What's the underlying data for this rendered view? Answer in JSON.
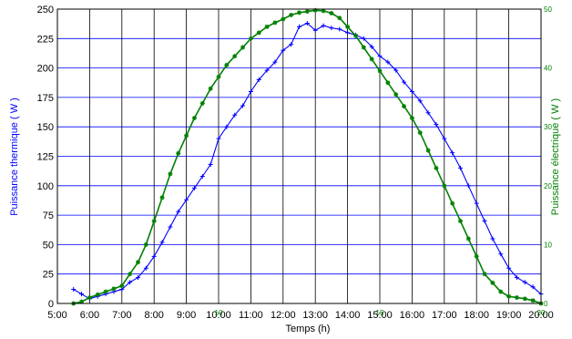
{
  "chart_data": {
    "type": "line",
    "xlabel": "Temps (h)",
    "ylabel": "Puissance thermique ( W )",
    "y2label": "Puissance électrique ( W )",
    "xlim": [
      5,
      20
    ],
    "ylim": [
      0,
      250
    ],
    "y2lim": [
      0,
      50
    ],
    "x_ticks": [
      "5:00",
      "6:00",
      "7:00",
      "8:00",
      "9:00",
      "10:00",
      "11:00",
      "12:00",
      "13:00",
      "14:00",
      "15:00",
      "16:00",
      "17:00",
      "18:00",
      "19:00",
      "20:00"
    ],
    "y_ticks": [
      "0",
      "25",
      "50",
      "75",
      "100",
      "125",
      "150",
      "175",
      "200",
      "225",
      "250"
    ],
    "y2_ticks": [
      "0",
      "10",
      "20",
      "30",
      "40",
      "50"
    ],
    "extra_tick_labels": [
      "10",
      "15",
      "20"
    ],
    "grid": true,
    "colors": {
      "thermal": "#0000ff",
      "electric": "#008000",
      "grid_h": "#0000ff",
      "grid_v": "#000000"
    },
    "series": [
      {
        "axis": "left",
        "color": "#0000ff",
        "marker": "+",
        "x": [
          5.5,
          5.75,
          6.0,
          6.25,
          6.5,
          6.75,
          7.0,
          7.25,
          7.5,
          7.75,
          8.0,
          8.25,
          8.5,
          8.75,
          9.0,
          9.25,
          9.5,
          9.75,
          10.0,
          10.25,
          10.5,
          10.75,
          11.0,
          11.25,
          11.5,
          11.75,
          12.0,
          12.25,
          12.5,
          12.75,
          13.0,
          13.25,
          13.5,
          13.75,
          14.0,
          14.25,
          14.5,
          14.75,
          15.0,
          15.25,
          15.5,
          15.75,
          16.0,
          16.25,
          16.5,
          16.75,
          17.0,
          17.25,
          17.5,
          17.75,
          18.0,
          18.25,
          18.5,
          18.75,
          19.0,
          19.25,
          19.5,
          19.75,
          20.0
        ],
        "y": [
          12,
          8,
          4,
          6,
          8,
          10,
          12,
          18,
          22,
          30,
          40,
          52,
          65,
          78,
          88,
          98,
          108,
          118,
          140,
          150,
          160,
          168,
          180,
          190,
          198,
          205,
          215,
          220,
          235,
          238,
          232,
          236,
          234,
          233,
          230,
          228,
          225,
          218,
          210,
          205,
          198,
          188,
          180,
          172,
          162,
          152,
          140,
          128,
          115,
          100,
          85,
          70,
          55,
          42,
          30,
          22,
          18,
          14,
          8
        ]
      },
      {
        "axis": "right",
        "color": "#008000",
        "marker": "*",
        "x": [
          5.5,
          5.75,
          6.0,
          6.25,
          6.5,
          6.75,
          7.0,
          7.25,
          7.5,
          7.75,
          8.0,
          8.25,
          8.5,
          8.75,
          9.0,
          9.25,
          9.5,
          9.75,
          10.0,
          10.25,
          10.5,
          10.75,
          11.0,
          11.25,
          11.5,
          11.75,
          12.0,
          12.25,
          12.5,
          12.75,
          13.0,
          13.25,
          13.5,
          13.75,
          14.0,
          14.25,
          14.5,
          14.75,
          15.0,
          15.25,
          15.5,
          15.75,
          16.0,
          16.25,
          16.5,
          16.75,
          17.0,
          17.25,
          17.5,
          17.75,
          18.0,
          18.25,
          18.5,
          18.75,
          19.0,
          19.25,
          19.5,
          19.75,
          20.0
        ],
        "y": [
          0,
          0.3,
          1,
          1.5,
          2,
          2.5,
          3,
          5,
          7,
          10,
          14,
          18,
          22,
          25.5,
          28.5,
          31.5,
          34,
          36.5,
          38.5,
          40.5,
          42,
          43.5,
          45,
          46,
          47,
          47.7,
          48.3,
          49,
          49.4,
          49.6,
          49.8,
          49.7,
          49.3,
          48.5,
          47,
          45.5,
          43.5,
          41.5,
          39.5,
          37.5,
          35.5,
          33.5,
          31.5,
          29,
          26,
          23,
          20,
          17,
          14,
          11,
          8,
          5,
          3.5,
          2,
          1.2,
          1,
          0.8,
          0.5,
          0
        ]
      }
    ]
  }
}
